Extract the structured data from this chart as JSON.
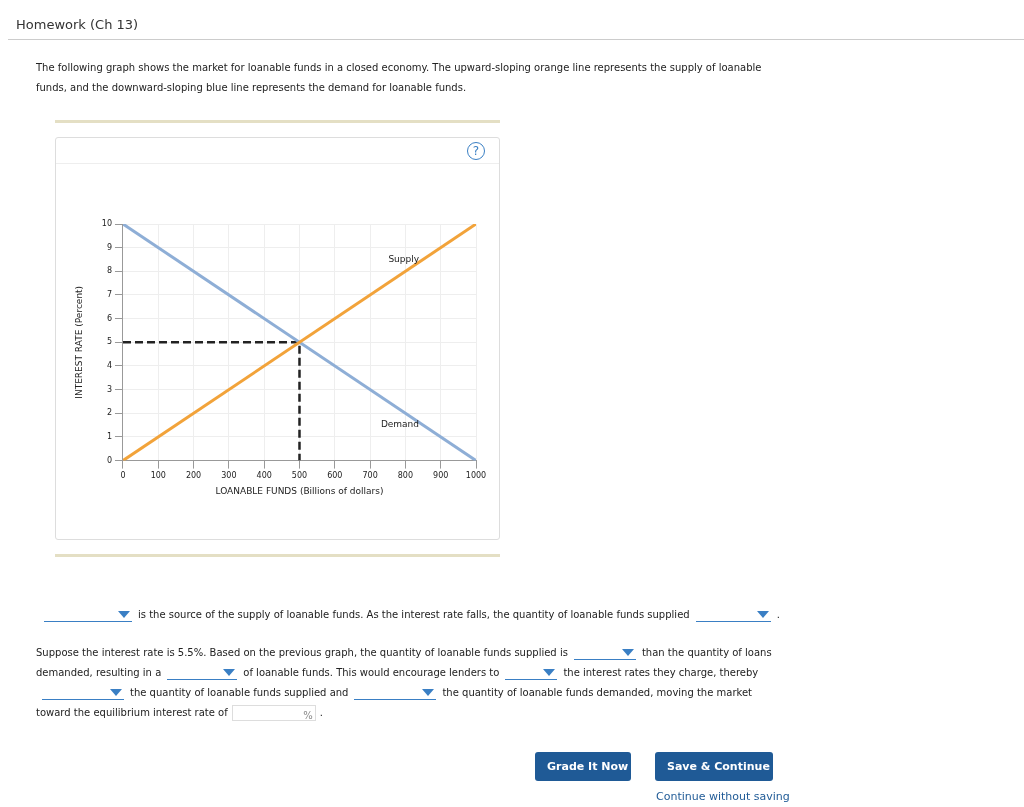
{
  "chart_data": {
    "type": "line",
    "title": "Homework (Ch 13)",
    "subtitle": "The following graph shows the market for loanable funds in a closed economy. The upward-sloping orange line represents the supply of loanable funds, and the downward-sloping blue line represents the demand for loanable funds.",
    "xlabel": "LOANABLE FUNDS (Billions of dollars)",
    "ylabel": "INTEREST RATE (Percent)",
    "xlim": [
      0,
      1000
    ],
    "xticks": [
      0,
      100,
      200,
      300,
      400,
      500,
      600,
      700,
      800,
      900,
      1000
    ],
    "ylim": [
      0,
      10
    ],
    "yticks": [
      0,
      1,
      2,
      3,
      4,
      5,
      6,
      7,
      8,
      9,
      10
    ],
    "grid": true,
    "series": [
      {
        "name": "Supply",
        "color": "#f2a33a",
        "x": [
          0,
          1000
        ],
        "values": [
          0,
          10
        ]
      },
      {
        "name": "Demand",
        "color": "#8eaed6",
        "x": [
          0,
          1000
        ],
        "values": [
          10,
          0
        ]
      },
      {
        "type": "line",
        "color": "#222222",
        "line_style": "dashed",
        "x": [
          0,
          500,
          500
        ],
        "values": [
          5,
          5,
          0
        ]
      }
    ],
    "annotations": [
      "is the source of the supply of loanable funds. As the interest rate falls, the quantity of loanable funds supplied",
      ".",
      "Suppose the interest rate is 5.5%. Based on the previous graph, the quantity of loanable funds supplied is",
      "than the quantity of loans demanded, resulting in a",
      "of loanable funds. This would encourage lenders to",
      "the interest rates they charge, thereby",
      "the quantity of loanable funds supplied and",
      "the quantity of loanable funds demanded, moving the market toward the equilibrium interest rate of",
      "%",
      ".",
      "Grade It Now",
      "Save & Continue",
      "Continue without saving",
      "?"
    ]
  }
}
